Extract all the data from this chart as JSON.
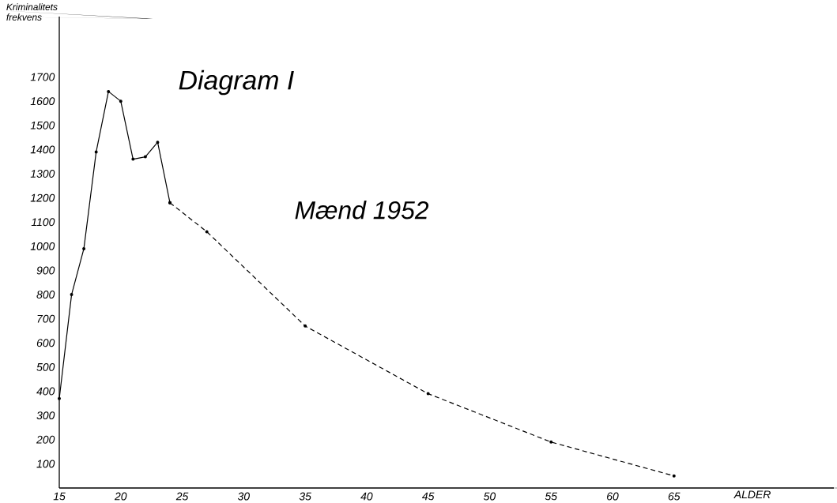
{
  "chart_data": {
    "type": "line",
    "title": "Diagram I",
    "xlabel": "ALDER",
    "ylabel": "Kriminalitets frekvens",
    "annotations": [
      "Mænd 1952"
    ],
    "xlim": [
      15,
      78
    ],
    "ylim": [
      0,
      1950
    ],
    "xticks": [
      15,
      20,
      25,
      30,
      35,
      40,
      45,
      50,
      55,
      60,
      65
    ],
    "yticks": [
      100,
      200,
      300,
      400,
      500,
      600,
      700,
      800,
      900,
      1000,
      1100,
      1200,
      1300,
      1400,
      1500,
      1600,
      1700
    ],
    "marker": "circle",
    "series": [
      {
        "color": "#000000",
        "line_style": "solid",
        "x": [
          15,
          16,
          17,
          18,
          19,
          20,
          21,
          22,
          23,
          24
        ],
        "values": [
          370,
          800,
          990,
          1390,
          1640,
          1600,
          1360,
          1370,
          1430,
          1180
        ]
      },
      {
        "color": "#000000",
        "line_style": "dashed",
        "x": [
          24,
          27,
          35,
          45,
          55,
          65
        ],
        "values": [
          1180,
          1060,
          670,
          390,
          190,
          50
        ]
      }
    ]
  }
}
